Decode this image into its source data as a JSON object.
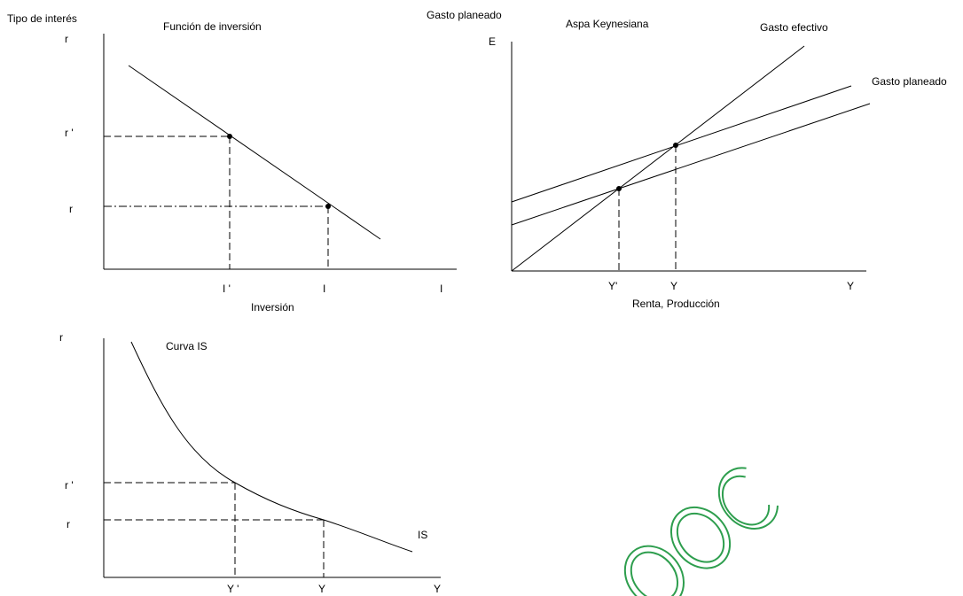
{
  "colors": {
    "ink": "#000000",
    "watermark": "#2e9e4e",
    "background": "#ffffff"
  },
  "investment": {
    "ylabel": "Tipo de interés",
    "y_top_tick": "r",
    "title": "Función de inversión",
    "r_prime": "r '",
    "r": "r",
    "i_prime": "I '",
    "i": "I",
    "i_end": "I",
    "xlabel": "Inversión"
  },
  "cross": {
    "header": "Gasto planeado",
    "title": "Aspa Keynesiana",
    "e_label": "E",
    "actual_label": "Gasto efectivo",
    "planned_label": "Gasto planeado",
    "y_prime": "Y'",
    "y": "Y",
    "y_end": "Y",
    "xlabel": "Renta, Producción"
  },
  "is_curve": {
    "y_top_tick": "r",
    "title": "Curva IS",
    "r_prime": "r '",
    "r": "r",
    "y_prime": "Y '",
    "y": "Y",
    "y_end": "Y",
    "curve_label": "IS"
  },
  "watermark": {
    "text": "DOC",
    "shape": "doc-rings"
  }
}
